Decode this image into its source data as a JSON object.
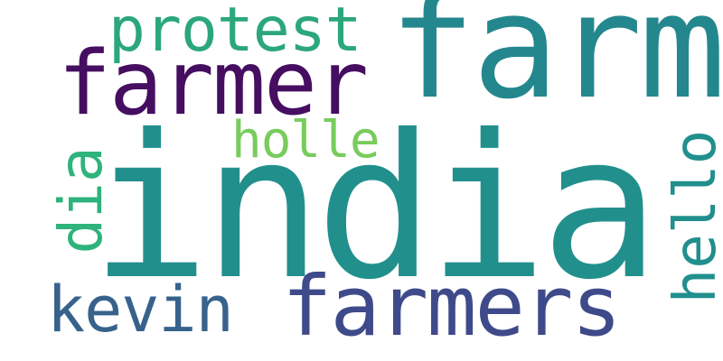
{
  "words": [
    {
      "text": "india",
      "color": "#21908d",
      "orientation": "horizontal"
    },
    {
      "text": "farm",
      "color": "#24878e",
      "orientation": "horizontal"
    },
    {
      "text": "farmer",
      "color": "#450e61",
      "orientation": "horizontal"
    },
    {
      "text": "protest",
      "color": "#2ba77b",
      "orientation": "horizontal"
    },
    {
      "text": "farmers",
      "color": "#3f4a8a",
      "orientation": "horizontal"
    },
    {
      "text": "kevin",
      "color": "#37628c",
      "orientation": "horizontal"
    },
    {
      "text": "holle",
      "color": "#78cc5c",
      "orientation": "horizontal"
    },
    {
      "text": "dia",
      "color": "#2eb37c",
      "orientation": "vertical"
    },
    {
      "text": "hello",
      "color": "#218f8d",
      "orientation": "vertical"
    }
  ]
}
